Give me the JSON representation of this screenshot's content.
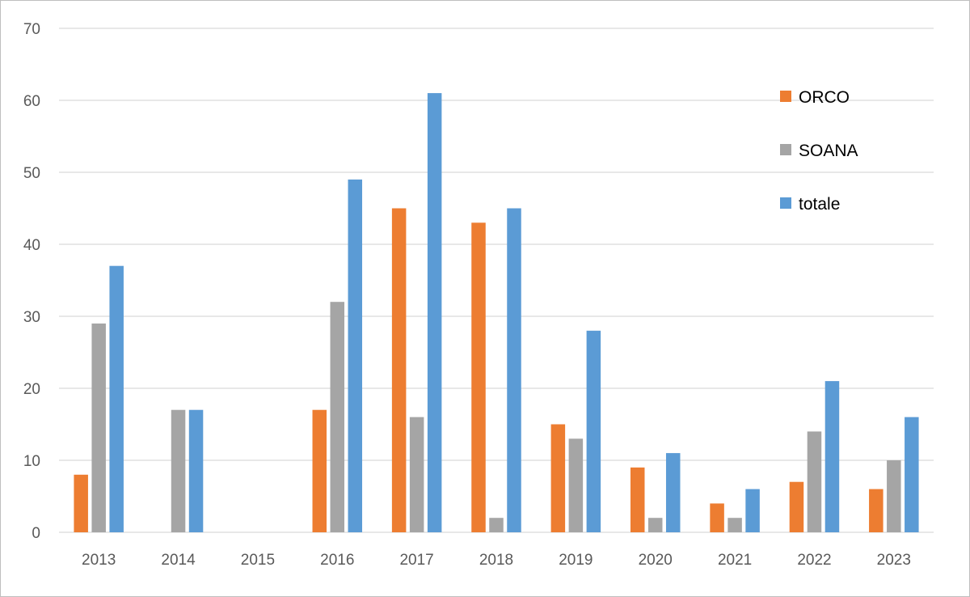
{
  "chart_data": {
    "type": "bar",
    "categories": [
      "2013",
      "2014",
      "2015",
      "2016",
      "2017",
      "2018",
      "2019",
      "2020",
      "2021",
      "2022",
      "2023"
    ],
    "series": [
      {
        "name": "ORCO",
        "color": "#ed7d31",
        "values": [
          8,
          0,
          0,
          17,
          45,
          43,
          15,
          9,
          4,
          7,
          6
        ]
      },
      {
        "name": "SOANA",
        "color": "#a5a5a5",
        "values": [
          29,
          17,
          0,
          32,
          16,
          2,
          13,
          2,
          2,
          14,
          10
        ]
      },
      {
        "name": "totale",
        "color": "#5b9bd5",
        "values": [
          37,
          17,
          0,
          49,
          61,
          45,
          28,
          11,
          6,
          21,
          16
        ]
      }
    ],
    "ylim": [
      0,
      70
    ],
    "yticks": [
      0,
      10,
      20,
      30,
      40,
      50,
      60,
      70
    ],
    "grid": true,
    "legend_position": "top-right",
    "title": "",
    "xlabel": "",
    "ylabel": ""
  }
}
